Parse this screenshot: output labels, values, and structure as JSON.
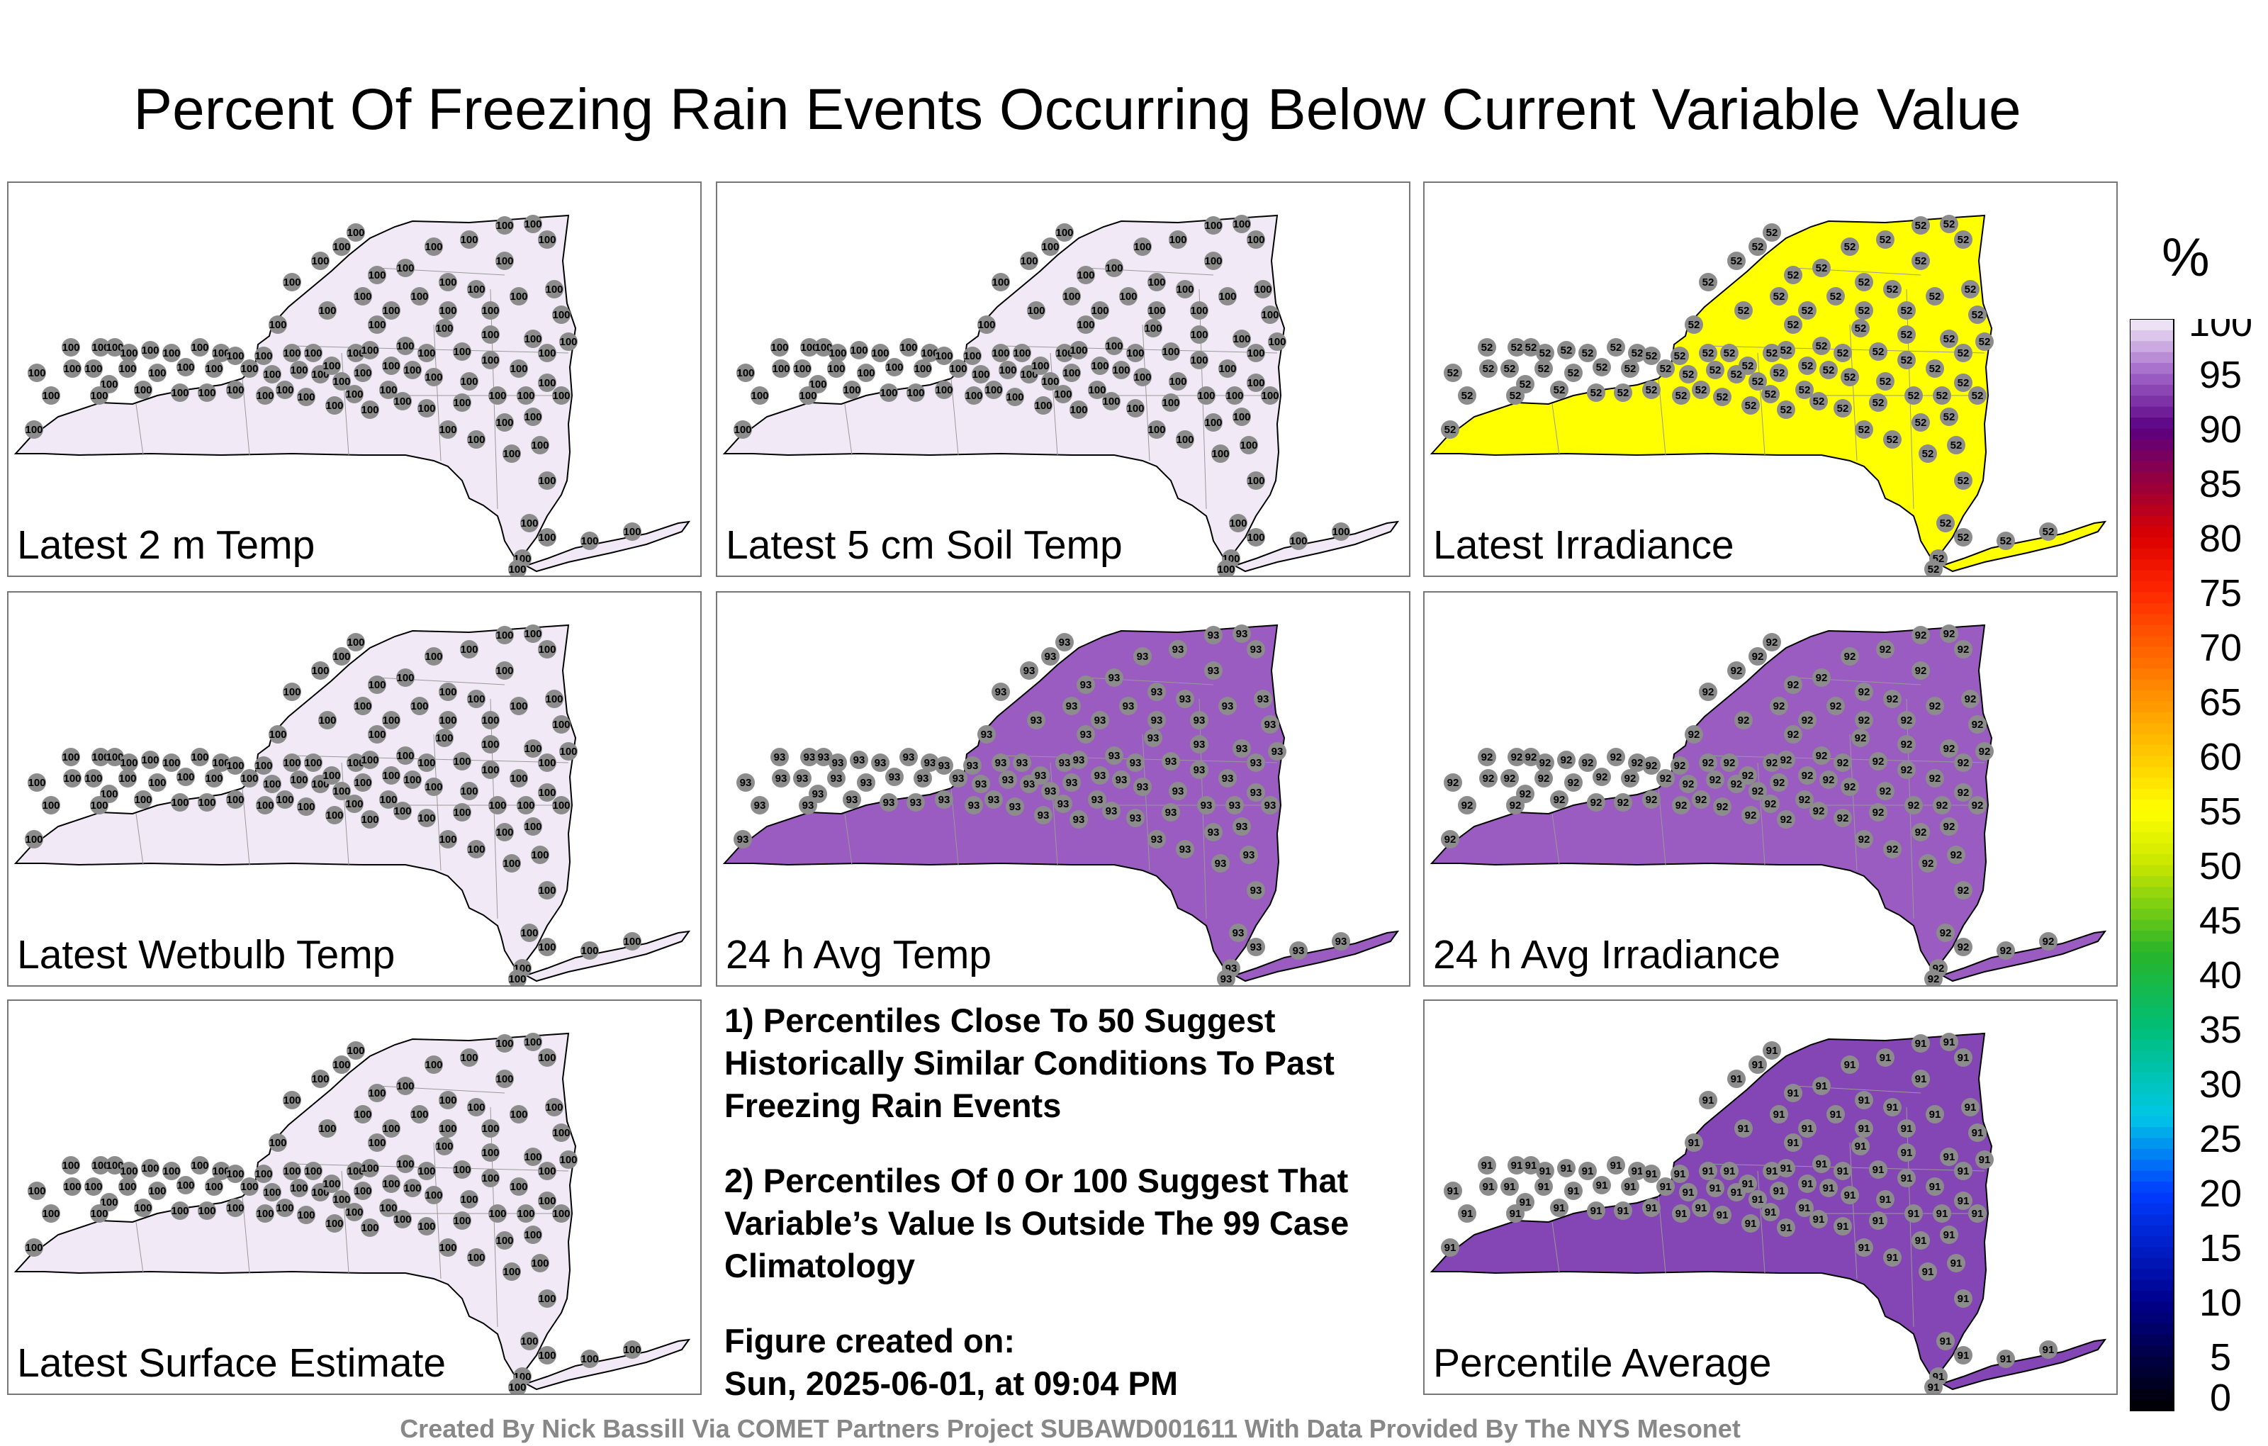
{
  "title": "Percent Of Freezing Rain Events Occurring Below Current Variable Value",
  "panels": [
    {
      "label": "Latest 2 m Temp",
      "fill": "#f1eaf6",
      "default_value": "100"
    },
    {
      "label": "Latest 5 cm Soil Temp",
      "fill": "#f1eaf6",
      "default_value": "100"
    },
    {
      "label": "Latest Irradiance",
      "fill": "#ffff00",
      "default_value": "52"
    },
    {
      "label": "Latest Wetbulb Temp",
      "fill": "#f1eaf6",
      "default_value": "100"
    },
    {
      "label": "24 h Avg Temp",
      "fill": "#9a5cc0",
      "default_value": "93"
    },
    {
      "label": "24 h Avg Irradiance",
      "fill": "#9a5cc0",
      "default_value": "92"
    },
    {
      "label": "Latest Surface Estimate",
      "fill": "#f1eaf6",
      "default_value": "100"
    },
    {
      "label": "Percentile Average",
      "fill": "#8446b4",
      "default_value": "91"
    }
  ],
  "notes": {
    "line1": "1) Percentiles Close To 50 Suggest Historically Similar Conditions To Past Freezing Rain Events",
    "line2": "2) Percentiles Of 0 Or 100 Suggest That Variable’s Value Is Outside The 99 Case Climatology",
    "created_label": "Figure created on:",
    "created_date": "Sun, 2025-06-01, at 09:04 PM"
  },
  "credit": "Created By Nick Bassill Via COMET Partners Project SUBAWD001611 With Data Provided By The NYS Mesonet",
  "colorbar": {
    "unit": "%",
    "ticks": [
      "0",
      "5",
      "10",
      "15",
      "20",
      "25",
      "30",
      "35",
      "40",
      "45",
      "50",
      "55",
      "60",
      "65",
      "70",
      "75",
      "80",
      "85",
      "90",
      "95",
      "100"
    ]
  }
}
